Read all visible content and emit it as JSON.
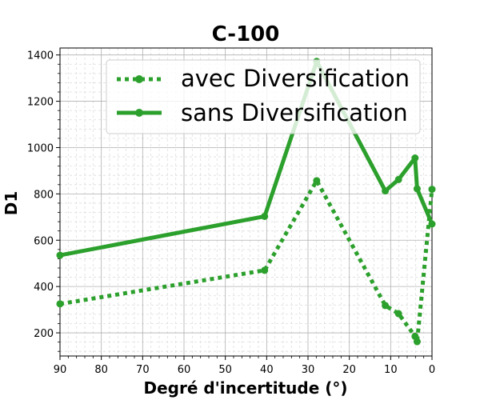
{
  "chart_data": {
    "type": "line",
    "title": "C-100",
    "xlabel": "Degré d'incertitude (°)",
    "ylabel": "D1",
    "xlim": [
      90,
      0
    ],
    "ylim": [
      100,
      1430
    ],
    "x_inverted": true,
    "xticks": [
      90,
      80,
      70,
      60,
      50,
      40,
      30,
      20,
      10,
      0
    ],
    "yticks": [
      200,
      400,
      600,
      800,
      1000,
      1200,
      1400
    ],
    "xtick_labels": [
      "90",
      "80",
      "70",
      "60",
      "50",
      "40",
      "30",
      "20",
      "10",
      "0"
    ],
    "ytick_labels": [
      "200",
      "400",
      "600",
      "800",
      "1000",
      "1200",
      "1400"
    ],
    "grid": true,
    "minor_grid": true,
    "legend_position": "top-right",
    "series": [
      {
        "name": "avec Diversification",
        "style": "dotted",
        "color": "#2ca02c",
        "x": [
          90,
          40.5,
          27.9,
          11.3,
          8.1,
          4.1,
          3.6,
          0
        ],
        "y": [
          325,
          470,
          857,
          318,
          283,
          185,
          162,
          820
        ]
      },
      {
        "name": "sans Diversification",
        "style": "solid",
        "color": "#2ca02c",
        "x": [
          90,
          40.5,
          27.9,
          11.3,
          8.1,
          4.1,
          3.6,
          0
        ],
        "y": [
          535,
          703,
          1372,
          813,
          862,
          955,
          822,
          670
        ]
      }
    ]
  }
}
